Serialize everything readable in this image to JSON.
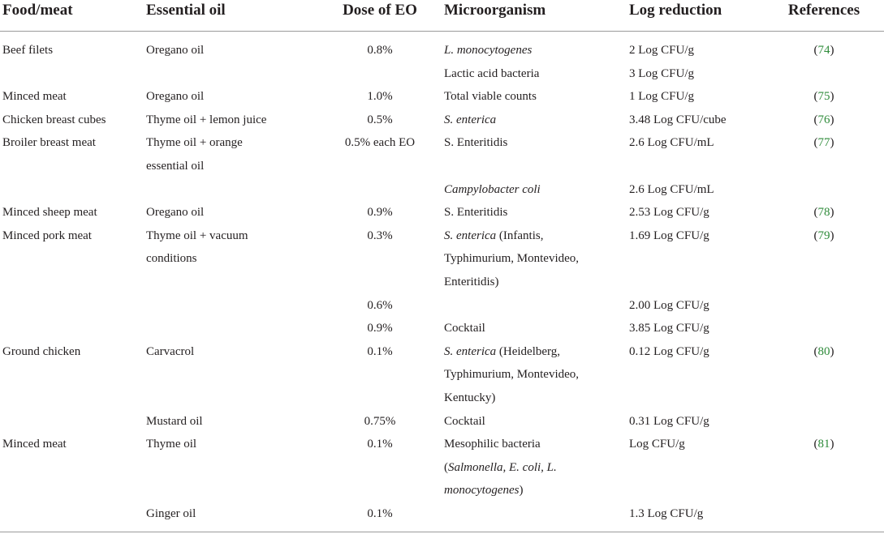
{
  "table": {
    "headers": {
      "food": "Food/meat",
      "oil": "Essential oil",
      "dose": "Dose of EO",
      "micro": "Microorganism",
      "log": "Log reduction",
      "ref": "References"
    },
    "rows": [
      {
        "food": "Beef filets",
        "oil": "Oregano oil",
        "dose": "0.8%",
        "micro": "L. monocytogenes",
        "log": "2 Log CFU/g",
        "ref": "74"
      },
      {
        "food": "",
        "oil": "",
        "dose": "",
        "micro": "Lactic acid bacteria",
        "log": "3 Log CFU/g",
        "ref": ""
      },
      {
        "food": "Minced meat",
        "oil": "Oregano oil",
        "dose": "1.0%",
        "micro": "Total viable counts",
        "log": "1 Log CFU/g",
        "ref": "75"
      },
      {
        "food": "Chicken breast cubes",
        "oil": "Thyme oil + lemon juice",
        "dose": "0.5%",
        "micro": "S. enterica",
        "log": "3.48 Log CFU/cube",
        "ref": "76"
      },
      {
        "food": "Broiler breast meat",
        "oil": "Thyme oil + orange",
        "dose": "0.5% each EO",
        "micro": "S. Enteritidis",
        "log": "2.6 Log CFU/mL",
        "ref": "77"
      },
      {
        "food": "",
        "oil": "essential oil",
        "dose": "",
        "micro": "",
        "log": "",
        "ref": ""
      },
      {
        "food": "",
        "oil": "",
        "dose": "",
        "micro": "Campylobacter coli",
        "log": "2.6 Log CFU/mL",
        "ref": ""
      },
      {
        "food": "Minced sheep meat",
        "oil": "Oregano oil",
        "dose": "0.9%",
        "micro": "S. Enteritidis",
        "log": "2.53 Log CFU/g",
        "ref": "78"
      },
      {
        "food": "Minced pork meat",
        "oil": "Thyme oil + vacuum",
        "dose": "0.3%",
        "micro": "S. enterica (Infantis,",
        "log": "1.69 Log CFU/g",
        "ref": "79"
      },
      {
        "food": "",
        "oil": "conditions",
        "dose": "",
        "micro": "Typhimurium, Montevideo,",
        "log": "",
        "ref": ""
      },
      {
        "food": "",
        "oil": "",
        "dose": "",
        "micro": "Enteritidis)",
        "log": "",
        "ref": ""
      },
      {
        "food": "",
        "oil": "",
        "dose": "0.6%",
        "micro": "",
        "log": "2.00 Log CFU/g",
        "ref": ""
      },
      {
        "food": "",
        "oil": "",
        "dose": "0.9%",
        "micro": "Cocktail",
        "log": "3.85 Log CFU/g",
        "ref": ""
      },
      {
        "food": "Ground chicken",
        "oil": "Carvacrol",
        "dose": "0.1%",
        "micro": "S. enterica (Heidelberg,",
        "log": "0.12 Log CFU/g",
        "ref": "80"
      },
      {
        "food": "",
        "oil": "",
        "dose": "",
        "micro": "Typhimurium, Montevideo,",
        "log": "",
        "ref": ""
      },
      {
        "food": "",
        "oil": "",
        "dose": "",
        "micro": "Kentucky)",
        "log": "",
        "ref": ""
      },
      {
        "food": "",
        "oil": "Mustard oil",
        "dose": "0.75%",
        "micro": "Cocktail",
        "log": "0.31 Log CFU/g",
        "ref": ""
      },
      {
        "food": "Minced meat",
        "oil": "Thyme oil",
        "dose": "0.1%",
        "micro": "Mesophilic bacteria",
        "log": "Log CFU/g",
        "ref": "81"
      },
      {
        "food": "",
        "oil": "",
        "dose": "",
        "micro": "(Salmonella, E. coli, L.",
        "log": "",
        "ref": ""
      },
      {
        "food": "",
        "oil": "",
        "dose": "",
        "micro": "monocytogenes)",
        "log": "",
        "ref": ""
      },
      {
        "food": "",
        "oil": "Ginger oil",
        "dose": "0.1%",
        "micro": "",
        "log": "1.3 Log CFU/g",
        "ref": ""
      }
    ]
  }
}
